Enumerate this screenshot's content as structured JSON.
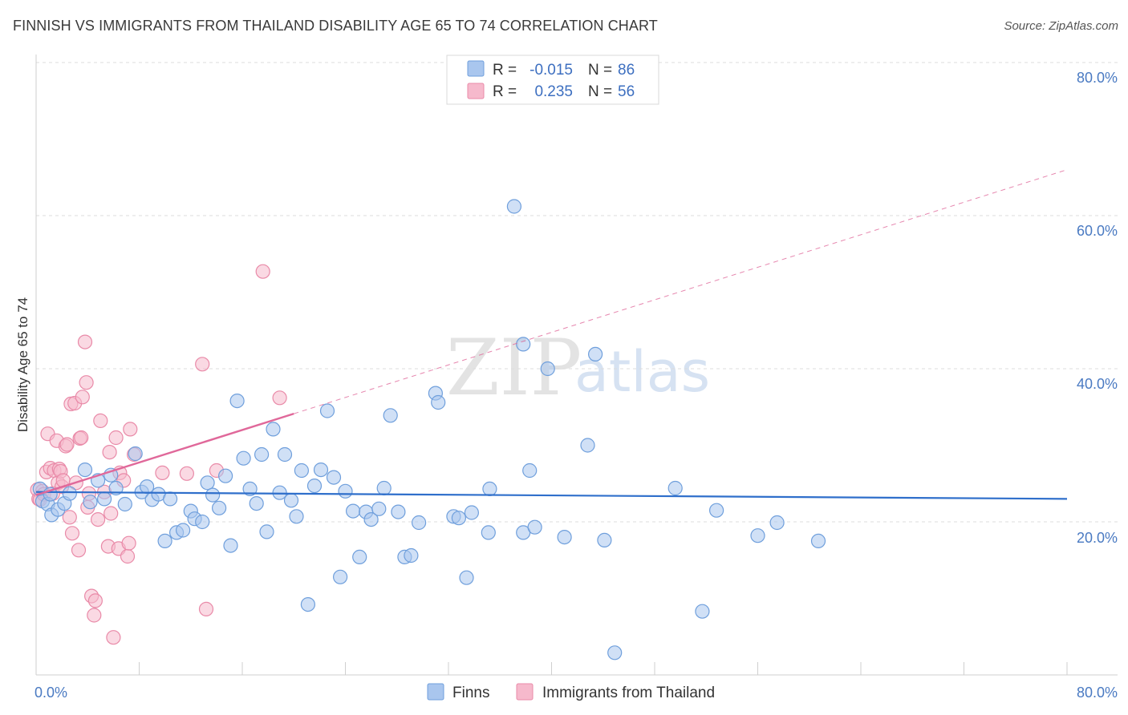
{
  "title": "FINNISH VS IMMIGRANTS FROM THAILAND DISABILITY AGE 65 TO 74 CORRELATION CHART",
  "source": "Source: ZipAtlas.com",
  "watermark": {
    "zip": "ZIP",
    "atlas": "atlas"
  },
  "colors": {
    "finns_fill": "#a9c6ee",
    "finns_stroke": "#6f9fdc",
    "finns_line": "#2f6fcb",
    "thai_fill": "#f6b9cc",
    "thai_stroke": "#e98aa8",
    "thai_line": "#e0689a",
    "grid": "#dcdcdc",
    "tick_text": "#4a7ac2"
  },
  "legend": {
    "rows": [
      {
        "r_label": "R =",
        "r_value": "-0.015",
        "n_label": "N =",
        "n_value": "86"
      },
      {
        "r_label": "R =",
        "r_value": "0.235",
        "n_label": "N =",
        "n_value": "56"
      }
    ]
  },
  "chart_data": {
    "type": "scatter",
    "xlabel": "",
    "ylabel": "Disability Age 65 to 74",
    "xlim": [
      0,
      80
    ],
    "ylim": [
      0,
      80
    ],
    "x_tick_labels": [
      "0.0%",
      "80.0%"
    ],
    "y_tick_labels": [
      "20.0%",
      "40.0%",
      "60.0%",
      "80.0%"
    ],
    "y_ticks": [
      20,
      40,
      60,
      80
    ],
    "grid": true,
    "legend_position": "bottom-center",
    "series": [
      {
        "name": "Finns",
        "trend": {
          "x0": 0,
          "y0": 23.9,
          "x1": 80,
          "y1": 23.0,
          "dashed_from": 80
        },
        "points": [
          [
            0.3,
            24.3
          ],
          [
            0.5,
            22.7
          ],
          [
            0.9,
            22.3
          ],
          [
            1.1,
            23.6
          ],
          [
            1.2,
            20.9
          ],
          [
            1.7,
            21.6
          ],
          [
            2.2,
            22.4
          ],
          [
            2.6,
            23.7
          ],
          [
            3.8,
            26.8
          ],
          [
            4.2,
            22.6
          ],
          [
            4.8,
            25.4
          ],
          [
            5.3,
            23.0
          ],
          [
            5.8,
            26.1
          ],
          [
            6.2,
            24.4
          ],
          [
            6.9,
            22.3
          ],
          [
            7.7,
            28.9
          ],
          [
            8.2,
            23.9
          ],
          [
            8.6,
            24.6
          ],
          [
            9.0,
            22.9
          ],
          [
            9.5,
            23.6
          ],
          [
            10.0,
            17.5
          ],
          [
            10.4,
            23.0
          ],
          [
            10.9,
            18.6
          ],
          [
            11.4,
            18.9
          ],
          [
            12.0,
            21.4
          ],
          [
            12.3,
            20.4
          ],
          [
            12.9,
            20.0
          ],
          [
            13.3,
            25.1
          ],
          [
            13.7,
            23.5
          ],
          [
            14.2,
            21.8
          ],
          [
            14.7,
            26.0
          ],
          [
            15.1,
            16.9
          ],
          [
            15.6,
            35.8
          ],
          [
            16.1,
            28.3
          ],
          [
            16.6,
            24.3
          ],
          [
            17.1,
            22.4
          ],
          [
            17.5,
            28.8
          ],
          [
            17.9,
            18.7
          ],
          [
            18.4,
            32.1
          ],
          [
            18.9,
            23.8
          ],
          [
            19.3,
            28.8
          ],
          [
            19.8,
            22.8
          ],
          [
            20.2,
            20.7
          ],
          [
            20.6,
            26.7
          ],
          [
            21.1,
            9.2
          ],
          [
            21.6,
            24.7
          ],
          [
            22.1,
            26.8
          ],
          [
            22.6,
            34.5
          ],
          [
            23.1,
            25.8
          ],
          [
            23.6,
            12.8
          ],
          [
            24.0,
            24.0
          ],
          [
            24.6,
            21.4
          ],
          [
            25.1,
            15.4
          ],
          [
            25.6,
            21.3
          ],
          [
            26.0,
            20.3
          ],
          [
            26.6,
            21.7
          ],
          [
            27.0,
            24.4
          ],
          [
            27.5,
            33.9
          ],
          [
            28.1,
            21.3
          ],
          [
            28.6,
            15.4
          ],
          [
            29.1,
            15.6
          ],
          [
            29.7,
            19.9
          ],
          [
            31.0,
            36.8
          ],
          [
            31.2,
            35.6
          ],
          [
            32.4,
            20.7
          ],
          [
            32.8,
            20.5
          ],
          [
            33.4,
            12.7
          ],
          [
            33.8,
            21.2
          ],
          [
            35.1,
            18.6
          ],
          [
            35.2,
            24.3
          ],
          [
            37.1,
            61.2
          ],
          [
            37.8,
            43.2
          ],
          [
            37.8,
            18.6
          ],
          [
            38.3,
            26.7
          ],
          [
            38.7,
            19.3
          ],
          [
            39.7,
            40.0
          ],
          [
            41.0,
            18.0
          ],
          [
            42.8,
            30.0
          ],
          [
            43.4,
            41.9
          ],
          [
            44.1,
            17.6
          ],
          [
            44.9,
            2.9
          ],
          [
            49.6,
            24.4
          ],
          [
            51.7,
            8.3
          ],
          [
            52.8,
            21.5
          ],
          [
            56.0,
            18.2
          ],
          [
            57.5,
            19.9
          ],
          [
            60.7,
            17.5
          ]
        ]
      },
      {
        "name": "Immigrants from Thailand",
        "trend": {
          "x0": 0,
          "y0": 23.5,
          "x1": 80,
          "y1": 66.0,
          "solid_until": 20
        },
        "points": [
          [
            0.1,
            24.2
          ],
          [
            0.2,
            23.0
          ],
          [
            0.3,
            22.9
          ],
          [
            0.5,
            24.0
          ],
          [
            0.6,
            23.6
          ],
          [
            0.8,
            26.5
          ],
          [
            0.9,
            31.5
          ],
          [
            1.1,
            27.0
          ],
          [
            1.3,
            23.7
          ],
          [
            1.4,
            26.7
          ],
          [
            1.6,
            30.6
          ],
          [
            1.7,
            25.1
          ],
          [
            1.8,
            26.9
          ],
          [
            1.9,
            26.6
          ],
          [
            2.0,
            24.6
          ],
          [
            2.1,
            25.4
          ],
          [
            2.3,
            29.9
          ],
          [
            2.4,
            30.1
          ],
          [
            2.6,
            20.6
          ],
          [
            2.7,
            35.4
          ],
          [
            2.8,
            18.5
          ],
          [
            3.0,
            35.5
          ],
          [
            3.1,
            25.1
          ],
          [
            3.3,
            16.3
          ],
          [
            3.4,
            30.9
          ],
          [
            3.5,
            31.0
          ],
          [
            3.6,
            36.3
          ],
          [
            3.8,
            43.5
          ],
          [
            3.9,
            38.2
          ],
          [
            4.0,
            21.9
          ],
          [
            4.1,
            23.7
          ],
          [
            4.3,
            10.3
          ],
          [
            4.5,
            7.8
          ],
          [
            4.6,
            9.7
          ],
          [
            4.8,
            20.3
          ],
          [
            5.0,
            33.2
          ],
          [
            5.3,
            23.9
          ],
          [
            5.6,
            16.8
          ],
          [
            5.7,
            29.1
          ],
          [
            5.8,
            21.1
          ],
          [
            6.0,
            4.9
          ],
          [
            6.2,
            31.0
          ],
          [
            6.4,
            16.5
          ],
          [
            6.5,
            26.4
          ],
          [
            6.8,
            25.4
          ],
          [
            7.1,
            15.5
          ],
          [
            7.3,
            32.1
          ],
          [
            7.2,
            17.2
          ],
          [
            7.6,
            28.8
          ],
          [
            9.8,
            26.4
          ],
          [
            11.7,
            26.3
          ],
          [
            12.9,
            40.6
          ],
          [
            13.2,
            8.6
          ],
          [
            14.0,
            26.7
          ],
          [
            17.6,
            52.7
          ],
          [
            18.9,
            36.2
          ]
        ]
      }
    ]
  },
  "bottom_legend": [
    {
      "label": "Finns"
    },
    {
      "label": "Immigrants from Thailand"
    }
  ]
}
